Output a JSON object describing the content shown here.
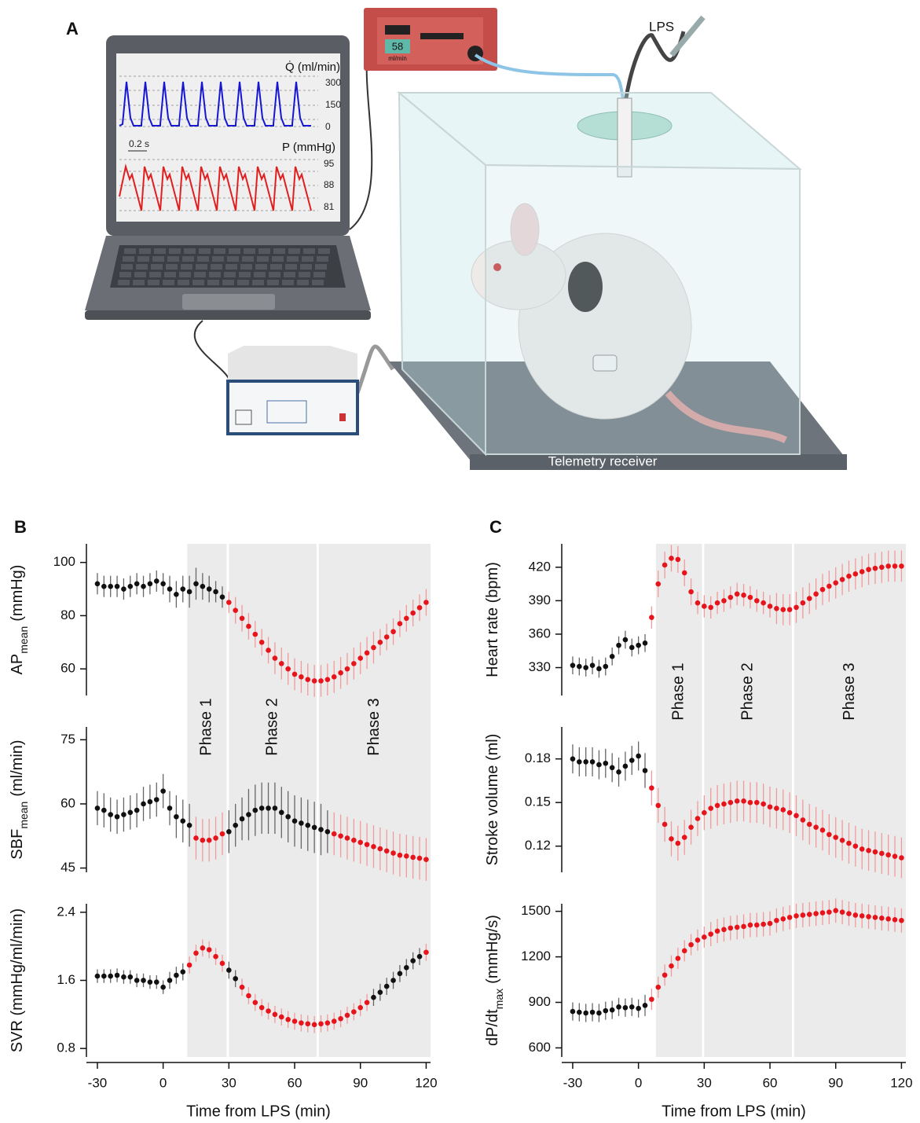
{
  "panel_a": {
    "label": "A",
    "lps": "LPS",
    "flow_label": "Q̇ (ml/min)",
    "flow_ticks": [
      "300",
      "150",
      "0"
    ],
    "scale_bar": "0.2 s",
    "pressure_label": "P (mmHg)",
    "pressure_ticks": [
      "95",
      "88",
      "81"
    ],
    "pump_value": "58",
    "pump_unit": "ml/min",
    "receiver": "Telemetry receiver"
  },
  "chart_data": [
    {
      "panel": "B",
      "type": "errorbar",
      "xlabel": "Time from LPS (min)",
      "xlim": [
        -35,
        122
      ],
      "xticks": [
        -30,
        0,
        30,
        60,
        90,
        120
      ],
      "x": [
        -30,
        -27,
        -24,
        -21,
        -18,
        -15,
        -12,
        -9,
        -6,
        -3,
        0,
        3,
        6,
        9,
        12,
        15,
        18,
        21,
        24,
        27,
        30,
        33,
        36,
        39,
        42,
        45,
        48,
        51,
        54,
        57,
        60,
        63,
        66,
        69,
        72,
        75,
        78,
        81,
        84,
        87,
        90,
        93,
        96,
        99,
        102,
        105,
        108,
        111,
        114,
        117,
        120
      ],
      "phase_color": "#ebebeb",
      "color": "#111111",
      "highlight_color": "#e8141b",
      "phases": [
        {
          "label": "Phase 1",
          "start": 11,
          "end": 29
        },
        {
          "label": "Phase 2",
          "start": 30,
          "end": 70
        },
        {
          "label": "Phase 3",
          "start": 71,
          "end": 122
        }
      ],
      "subplots": [
        {
          "ylabel": {
            "main": "AP",
            "sub": "mean",
            "unit": "(mmHg)"
          },
          "ylim": [
            50,
            107
          ],
          "yticks": [
            60,
            80,
            100
          ],
          "highlight_x": [
            [
              30,
              121
            ]
          ],
          "values": [
            92,
            91,
            91,
            91,
            90,
            91,
            92,
            91,
            92,
            93,
            92,
            90,
            88,
            90,
            89,
            92,
            91,
            90,
            89,
            87,
            85,
            82,
            79,
            76,
            73,
            70,
            67,
            64,
            62,
            60,
            58,
            57,
            56,
            55.5,
            55.5,
            56,
            57,
            58.5,
            60,
            62,
            64,
            66,
            68,
            70,
            72,
            74,
            77,
            79,
            81,
            83,
            85
          ],
          "errors": [
            4,
            4,
            4,
            4,
            4,
            4,
            4,
            4,
            4,
            4,
            4,
            5,
            5,
            5,
            6,
            6,
            5,
            5,
            4,
            4,
            4,
            5,
            5,
            5,
            5,
            5,
            5,
            6,
            6,
            6,
            6,
            6,
            6,
            6,
            6,
            6,
            6,
            6,
            6,
            6,
            6,
            6,
            6,
            5,
            5,
            5,
            5,
            5,
            5,
            5,
            5
          ]
        },
        {
          "ylabel": {
            "main": "SBF",
            "sub": "mean",
            "unit": "(ml/min)"
          },
          "ylim": [
            44,
            78
          ],
          "yticks": [
            45,
            60,
            75
          ],
          "highlight_x": [
            [
              14,
              28
            ],
            [
              78,
              121
            ]
          ],
          "values": [
            59,
            58.5,
            57.5,
            57,
            57.5,
            58,
            58.5,
            60,
            60.5,
            61,
            63,
            59,
            57,
            56,
            55,
            52,
            51.5,
            51.5,
            52,
            53,
            53.5,
            55,
            56.5,
            57.5,
            58.5,
            59,
            59,
            59,
            58,
            57,
            56,
            55.5,
            55,
            54.5,
            54,
            53.5,
            53,
            52.5,
            52,
            51.5,
            51,
            50.5,
            50,
            49.5,
            49,
            48.5,
            48,
            47.8,
            47.5,
            47.3,
            47
          ],
          "errors": [
            4,
            4,
            4,
            4,
            4,
            4,
            4,
            4,
            4,
            4,
            4,
            4,
            5,
            5,
            5,
            5,
            5,
            5,
            5,
            5,
            5,
            5,
            5,
            6,
            6,
            6,
            6,
            6,
            6,
            6,
            6,
            6,
            6,
            6,
            6,
            5,
            5,
            5,
            5,
            5,
            5,
            5,
            5,
            5,
            5,
            5,
            5,
            5,
            5,
            5,
            5
          ]
        },
        {
          "ylabel": {
            "main": "SVR (mmHg/ml/min)"
          },
          "ylim": [
            0.7,
            2.5
          ],
          "yticks": [
            0.8,
            1.6,
            2.4
          ],
          "highlight_x": [
            [
              12,
              27
            ],
            [
              36,
              93
            ],
            [
              119,
              121
            ]
          ],
          "values": [
            1.65,
            1.65,
            1.65,
            1.66,
            1.64,
            1.64,
            1.6,
            1.6,
            1.58,
            1.58,
            1.52,
            1.6,
            1.66,
            1.7,
            1.78,
            1.92,
            1.98,
            1.96,
            1.88,
            1.8,
            1.72,
            1.62,
            1.52,
            1.42,
            1.34,
            1.28,
            1.24,
            1.2,
            1.17,
            1.14,
            1.12,
            1.1,
            1.09,
            1.08,
            1.09,
            1.1,
            1.12,
            1.15,
            1.19,
            1.23,
            1.28,
            1.34,
            1.4,
            1.46,
            1.53,
            1.6,
            1.68,
            1.75,
            1.83,
            1.88,
            1.93
          ],
          "errors": [
            0.08,
            0.08,
            0.08,
            0.08,
            0.08,
            0.08,
            0.08,
            0.08,
            0.08,
            0.08,
            0.08,
            0.1,
            0.1,
            0.1,
            0.1,
            0.1,
            0.1,
            0.1,
            0.1,
            0.1,
            0.1,
            0.1,
            0.1,
            0.1,
            0.1,
            0.1,
            0.1,
            0.1,
            0.1,
            0.1,
            0.1,
            0.1,
            0.1,
            0.1,
            0.1,
            0.1,
            0.1,
            0.1,
            0.1,
            0.1,
            0.1,
            0.1,
            0.1,
            0.1,
            0.1,
            0.1,
            0.1,
            0.1,
            0.1,
            0.1,
            0.1
          ]
        }
      ]
    },
    {
      "panel": "C",
      "type": "errorbar",
      "xlabel": "Time from LPS (min)",
      "xlim": [
        -35,
        122
      ],
      "xticks": [
        -30,
        0,
        30,
        60,
        90,
        120
      ],
      "x": [
        -30,
        -27,
        -24,
        -21,
        -18,
        -15,
        -12,
        -9,
        -6,
        -3,
        0,
        3,
        6,
        9,
        12,
        15,
        18,
        21,
        24,
        27,
        30,
        33,
        36,
        39,
        42,
        45,
        48,
        51,
        54,
        57,
        60,
        63,
        66,
        69,
        72,
        75,
        78,
        81,
        84,
        87,
        90,
        93,
        96,
        99,
        102,
        105,
        108,
        111,
        114,
        117,
        120
      ],
      "phase_color": "#ebebeb",
      "color": "#111111",
      "highlight_color": "#e8141b",
      "phases": [
        {
          "label": "Phase 1",
          "start": 8,
          "end": 29
        },
        {
          "label": "Phase 2",
          "start": 30,
          "end": 70
        },
        {
          "label": "Phase 3",
          "start": 71,
          "end": 122
        }
      ],
      "subplots": [
        {
          "ylabel": {
            "main": "Heart rate (bpm)"
          },
          "ylim": [
            305,
            441
          ],
          "yticks": [
            330,
            360,
            390,
            420
          ],
          "highlight_x": [
            [
              5,
              121
            ]
          ],
          "values": [
            332,
            331,
            330,
            332,
            329,
            331,
            340,
            350,
            355,
            348,
            350,
            352,
            375,
            405,
            422,
            428,
            427,
            415,
            398,
            388,
            385,
            384,
            388,
            390,
            393,
            396,
            395,
            393,
            390,
            388,
            385,
            383,
            382,
            382,
            384,
            388,
            392,
            396,
            400,
            403,
            406,
            409,
            412,
            414,
            416,
            418,
            419,
            420,
            421,
            421,
            421
          ],
          "errors": [
            8,
            8,
            8,
            8,
            8,
            8,
            8,
            8,
            8,
            8,
            8,
            8,
            10,
            12,
            12,
            12,
            12,
            12,
            12,
            10,
            10,
            10,
            10,
            10,
            10,
            10,
            10,
            10,
            10,
            10,
            10,
            14,
            14,
            14,
            14,
            14,
            14,
            14,
            14,
            14,
            14,
            14,
            14,
            14,
            14,
            14,
            14,
            14,
            14,
            14,
            14
          ]
        },
        {
          "ylabel": {
            "main": "Stroke volume (ml)"
          },
          "ylim": [
            0.102,
            0.202
          ],
          "yticks": [
            0.12,
            0.15,
            0.18
          ],
          "highlight_x": [
            [
              5,
              121
            ]
          ],
          "values": [
            0.18,
            0.178,
            0.178,
            0.178,
            0.176,
            0.177,
            0.174,
            0.171,
            0.175,
            0.179,
            0.182,
            0.172,
            0.16,
            0.148,
            0.135,
            0.125,
            0.122,
            0.126,
            0.133,
            0.139,
            0.143,
            0.146,
            0.148,
            0.149,
            0.15,
            0.151,
            0.151,
            0.15,
            0.15,
            0.149,
            0.147,
            0.146,
            0.145,
            0.143,
            0.141,
            0.138,
            0.135,
            0.133,
            0.131,
            0.128,
            0.126,
            0.124,
            0.122,
            0.12,
            0.118,
            0.117,
            0.116,
            0.115,
            0.114,
            0.113,
            0.112
          ],
          "errors": [
            0.01,
            0.01,
            0.01,
            0.01,
            0.01,
            0.01,
            0.01,
            0.01,
            0.01,
            0.01,
            0.01,
            0.012,
            0.012,
            0.012,
            0.012,
            0.012,
            0.012,
            0.012,
            0.012,
            0.012,
            0.012,
            0.014,
            0.014,
            0.014,
            0.014,
            0.014,
            0.014,
            0.014,
            0.014,
            0.014,
            0.014,
            0.014,
            0.014,
            0.014,
            0.014,
            0.014,
            0.014,
            0.014,
            0.014,
            0.014,
            0.014,
            0.014,
            0.014,
            0.014,
            0.014,
            0.014,
            0.014,
            0.014,
            0.014,
            0.014,
            0.014
          ]
        },
        {
          "ylabel": {
            "main": "dP/dt",
            "sub": "max",
            "unit": "(mmHg/s)"
          },
          "ylim": [
            540,
            1550
          ],
          "yticks": [
            600,
            900,
            1200,
            1500
          ],
          "highlight_x": [
            [
              5,
              121
            ]
          ],
          "values": [
            840,
            835,
            830,
            835,
            830,
            845,
            850,
            870,
            865,
            870,
            860,
            880,
            920,
            1000,
            1080,
            1140,
            1190,
            1240,
            1280,
            1310,
            1330,
            1350,
            1370,
            1380,
            1390,
            1395,
            1400,
            1410,
            1410,
            1415,
            1420,
            1440,
            1450,
            1460,
            1470,
            1475,
            1480,
            1485,
            1490,
            1495,
            1505,
            1495,
            1485,
            1475,
            1470,
            1465,
            1460,
            1455,
            1450,
            1445,
            1440
          ],
          "errors": [
            60,
            60,
            60,
            60,
            60,
            60,
            60,
            60,
            60,
            60,
            60,
            70,
            70,
            70,
            70,
            70,
            70,
            70,
            70,
            70,
            70,
            80,
            80,
            80,
            80,
            80,
            80,
            80,
            80,
            80,
            80,
            80,
            80,
            80,
            80,
            80,
            80,
            80,
            80,
            80,
            80,
            80,
            80,
            80,
            80,
            80,
            80,
            80,
            80,
            80,
            80
          ]
        }
      ]
    }
  ]
}
